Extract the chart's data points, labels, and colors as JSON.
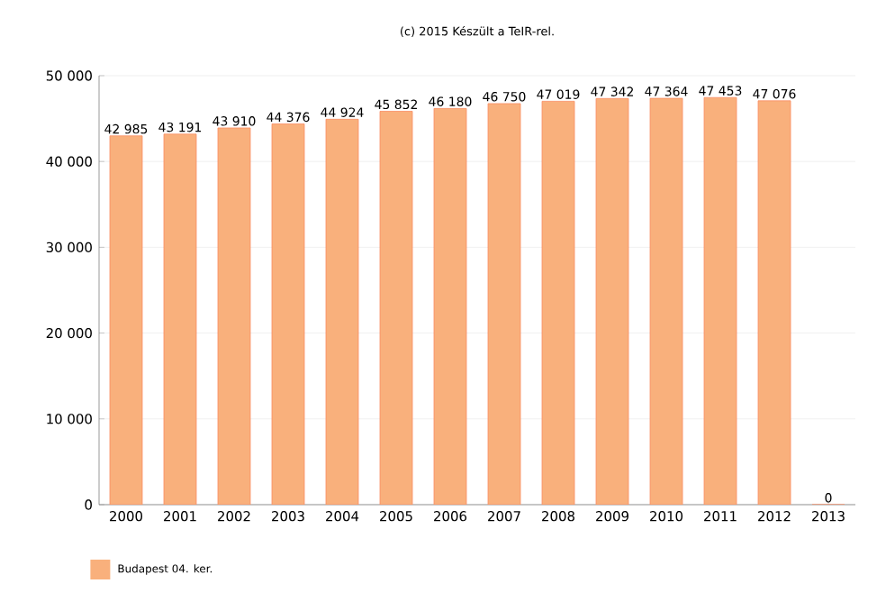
{
  "chart_data": {
    "type": "bar",
    "title": "(c) 2015 Készült a TeIR-rel.",
    "categories": [
      "2000",
      "2001",
      "2002",
      "2003",
      "2004",
      "2005",
      "2006",
      "2007",
      "2008",
      "2009",
      "2010",
      "2011",
      "2012",
      "2013"
    ],
    "series": [
      {
        "name": "Budapest 04. ker.",
        "color": "#f9b07c",
        "values": [
          42985,
          43191,
          43910,
          44376,
          44924,
          45852,
          46180,
          46750,
          47019,
          47342,
          47364,
          47453,
          47076,
          0
        ],
        "value_labels": [
          "42 985",
          "43 191",
          "43 910",
          "44 376",
          "44 924",
          "45 852",
          "46 180",
          "46 750",
          "47 019",
          "47 342",
          "47 364",
          "47 453",
          "47 076",
          "0"
        ]
      }
    ],
    "ylim": [
      0,
      50000
    ],
    "yticks": [
      {
        "value": 0,
        "label": "0"
      },
      {
        "value": 10000,
        "label": "10 000"
      },
      {
        "value": 20000,
        "label": "20 000"
      },
      {
        "value": 30000,
        "label": "30 000"
      },
      {
        "value": 40000,
        "label": "40 000"
      },
      {
        "value": 50000,
        "label": "50 000"
      }
    ],
    "grid": "y",
    "legend": "bottom left"
  }
}
